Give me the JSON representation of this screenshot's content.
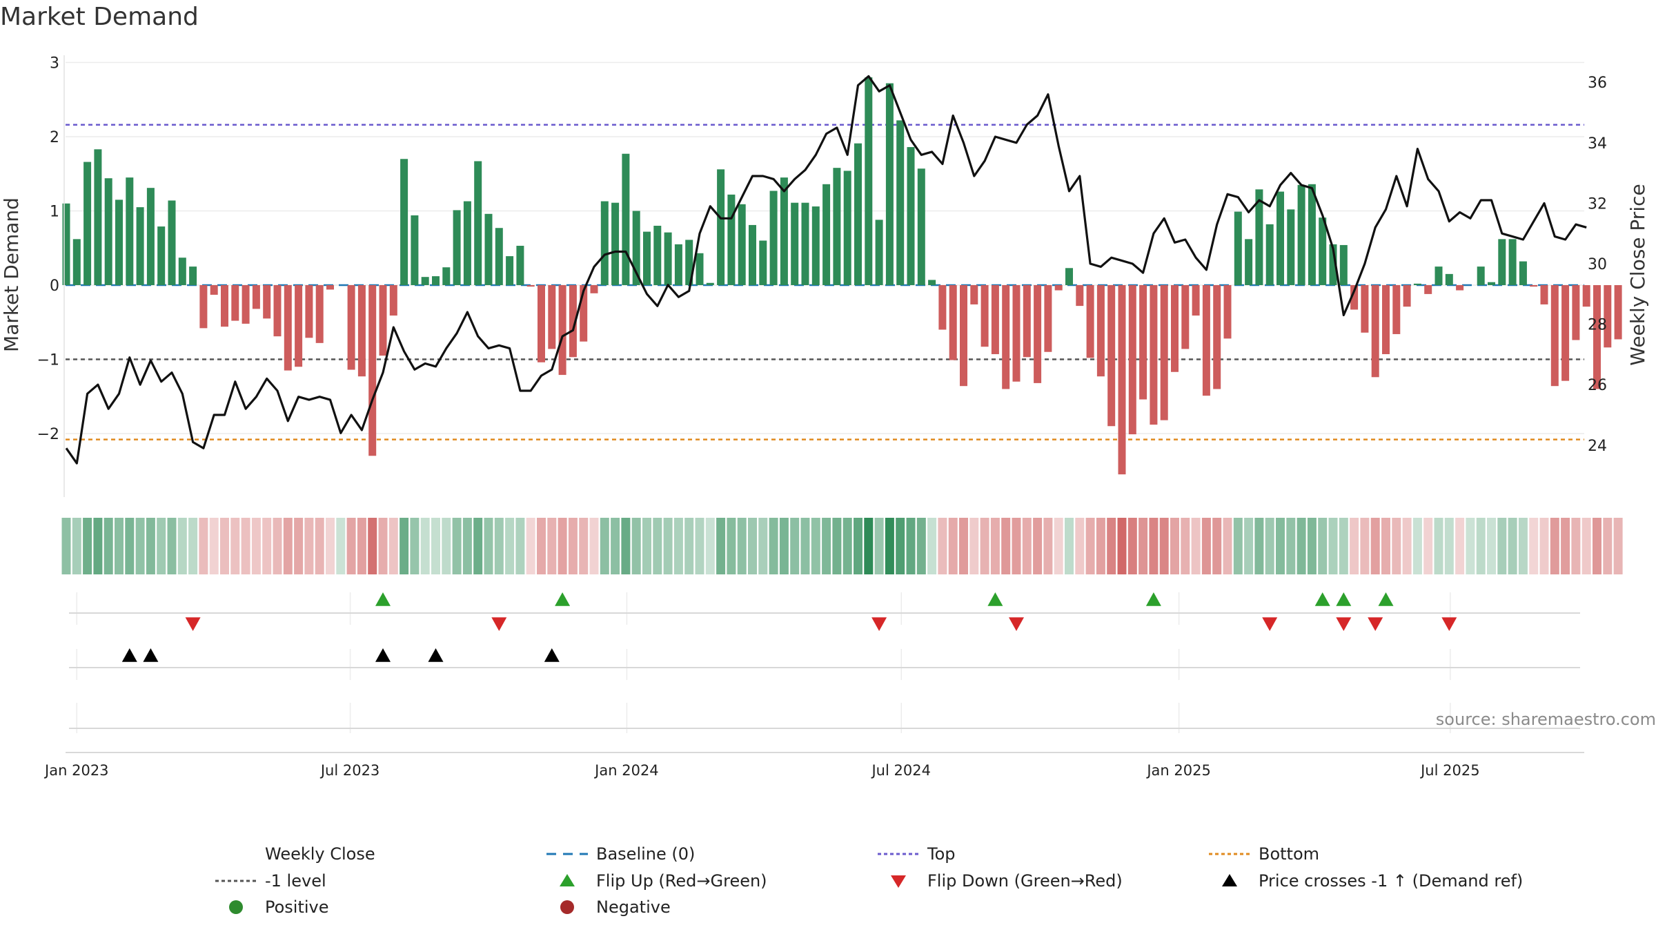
{
  "chart_data": {
    "type": "bar+line",
    "title": "Market Demand",
    "ylabel_left": "Market Demand",
    "ylabel_right": "Weekly Close Price",
    "ylim_left": [
      -2.7,
      3.1
    ],
    "ylim_right": [
      22.4,
      37.0
    ],
    "yticks_left": [
      3,
      2,
      1,
      0,
      -1,
      -2
    ],
    "ytick_labels_left": [
      "3",
      "2",
      "1",
      "0",
      "−1",
      "−2"
    ],
    "yticks_right": [
      36,
      34,
      32,
      30,
      28,
      26,
      24
    ],
    "ytick_labels_right": [
      "36",
      "34",
      "32",
      "30",
      "28",
      "26",
      "24"
    ],
    "x_start": "2022-12-26",
    "x_step_weeks": 1,
    "xticks": [
      {
        "week": 1.0,
        "label": "Jan 2023"
      },
      {
        "week": 26.9,
        "label": "Jul 2023"
      },
      {
        "week": 53.1,
        "label": "Jan 2024"
      },
      {
        "week": 79.1,
        "label": "Jul 2024"
      },
      {
        "week": 105.4,
        "label": "Jan 2025"
      },
      {
        "week": 131.1,
        "label": "Jul 2025"
      }
    ],
    "demand": [
      1.1,
      0.62,
      1.66,
      1.83,
      1.44,
      1.15,
      1.45,
      1.05,
      1.31,
      0.79,
      1.14,
      0.37,
      0.25,
      -0.58,
      -0.13,
      -0.56,
      -0.48,
      -0.52,
      -0.32,
      -0.45,
      -0.69,
      -1.15,
      -1.1,
      -0.71,
      -0.78,
      -0.06,
      0,
      -1.14,
      -1.23,
      -2.3,
      -0.95,
      -0.41,
      1.7,
      0.94,
      0.11,
      0.12,
      0.24,
      1.01,
      1.13,
      1.67,
      0.96,
      0.77,
      0.39,
      0.53,
      -0.02,
      -1.04,
      -0.86,
      -1.21,
      -0.97,
      -0.76,
      -0.11,
      1.13,
      1.11,
      1.77,
      1.0,
      0.72,
      0.8,
      0.71,
      0.55,
      0.61,
      0.43,
      0.03,
      1.56,
      1.22,
      1.09,
      0.81,
      0.6,
      1.27,
      1.45,
      1.11,
      1.11,
      1.06,
      1.36,
      1.58,
      1.54,
      1.91,
      2.8,
      0.88,
      2.72,
      2.22,
      1.86,
      1.57,
      0.07,
      -0.6,
      -1.01,
      -1.36,
      -0.26,
      -0.83,
      -0.93,
      -1.4,
      -1.3,
      -0.97,
      -1.32,
      -0.9,
      -0.07,
      0.23,
      -0.28,
      -0.98,
      -1.23,
      -1.9,
      -2.55,
      -2.01,
      -1.54,
      -1.88,
      -1.82,
      -1.17,
      -0.86,
      -0.41,
      -1.49,
      -1.4,
      -0.72,
      0.99,
      0.62,
      1.29,
      0.82,
      1.26,
      1.02,
      1.35,
      1.36,
      0.91,
      0.55,
      0.54,
      -0.33,
      -0.64,
      -1.24,
      -0.93,
      -0.66,
      -0.29,
      0.02,
      -0.12,
      0.25,
      0.15,
      -0.07,
      0,
      0.25,
      0.04,
      0.62,
      0.62,
      0.32,
      -0.02,
      -0.26,
      -1.36,
      -1.29,
      -0.74,
      -0.29,
      -1.4,
      -0.84,
      -0.73
    ],
    "close": [
      23.9,
      23.4,
      25.7,
      26.0,
      25.2,
      25.7,
      26.9,
      26.0,
      26.8,
      26.1,
      26.4,
      25.7,
      24.1,
      23.9,
      25.0,
      25.0,
      26.1,
      25.2,
      25.6,
      26.2,
      25.8,
      24.8,
      25.6,
      25.5,
      25.6,
      25.5,
      24.4,
      25.0,
      24.5,
      25.5,
      26.4,
      27.9,
      27.1,
      26.5,
      26.7,
      26.6,
      27.2,
      27.7,
      28.4,
      27.6,
      27.2,
      27.3,
      27.2,
      25.8,
      25.8,
      26.3,
      26.5,
      27.6,
      27.8,
      29.1,
      29.9,
      30.3,
      30.4,
      30.4,
      29.7,
      29.0,
      28.6,
      29.3,
      28.9,
      29.1,
      31.0,
      31.9,
      31.5,
      31.5,
      32.2,
      32.9,
      32.9,
      32.8,
      32.4,
      32.8,
      33.1,
      33.6,
      34.3,
      34.5,
      33.6,
      35.9,
      36.2,
      35.7,
      35.9,
      35.0,
      34.1,
      33.6,
      33.7,
      33.3,
      34.9,
      34.0,
      32.9,
      33.4,
      34.2,
      34.1,
      34.0,
      34.6,
      34.9,
      35.6,
      33.9,
      32.4,
      32.9,
      30.0,
      29.9,
      30.2,
      30.1,
      30.0,
      29.7,
      31.0,
      31.5,
      30.7,
      30.8,
      30.2,
      29.8,
      31.3,
      32.3,
      32.2,
      31.7,
      32.1,
      31.9,
      32.6,
      33.0,
      32.6,
      32.5,
      31.6,
      30.5,
      28.3,
      29.1,
      30.0,
      31.2,
      31.8,
      32.9,
      31.9,
      33.8,
      32.8,
      32.4,
      31.4,
      31.7,
      31.5,
      32.1,
      32.1,
      31.0,
      30.9,
      30.8,
      31.4,
      32.0,
      30.9,
      30.8,
      31.3,
      31.2
    ],
    "top_level": 2.16,
    "bottom_level": -2.08,
    "minus_one_level": -1,
    "baseline_level": 0,
    "flip_up_weeks": [
      30,
      47,
      88,
      103,
      119,
      121,
      125
    ],
    "flip_down_weeks": [
      12,
      41,
      77,
      90,
      114,
      121,
      124,
      131
    ],
    "price_cross_weeks": [
      6,
      8,
      30,
      35,
      46
    ],
    "colors": {
      "pos_bar": "#2e8b57",
      "neg_bar": "#cd5c5c",
      "close_line": "#111111",
      "baseline": "#1f77b4",
      "top": "#6a5acd",
      "bottom": "#e08a1e",
      "minus_one": "#555555",
      "flip_up": "#2ca02c",
      "flip_down": "#d62728",
      "cross": "#000000",
      "positive_dot": "#2e8b2e",
      "negative_dot": "#a52a2a"
    },
    "legend": [
      {
        "key": "close",
        "label": "Weekly Close",
        "symbol": "line-solid"
      },
      {
        "key": "baseline",
        "label": "Baseline (0)",
        "symbol": "line-dashed"
      },
      {
        "key": "top",
        "label": "Top",
        "symbol": "line-dotted"
      },
      {
        "key": "bottom",
        "label": "Bottom",
        "symbol": "line-dotted"
      },
      {
        "key": "minus_one",
        "label": "-1 level",
        "symbol": "line-dotted"
      },
      {
        "key": "flip_up",
        "label": "Flip Up (Red→Green)",
        "symbol": "triangle-up"
      },
      {
        "key": "flip_down",
        "label": "Flip Down (Green→Red)",
        "symbol": "triangle-down"
      },
      {
        "key": "cross",
        "label": "Price crosses -1 ↑ (Demand ref)",
        "symbol": "triangle-up"
      },
      {
        "key": "positive_dot",
        "label": "Positive",
        "symbol": "dot"
      },
      {
        "key": "negative_dot",
        "label": "Negative",
        "symbol": "dot"
      }
    ],
    "source": "source: sharemaestro.com"
  }
}
